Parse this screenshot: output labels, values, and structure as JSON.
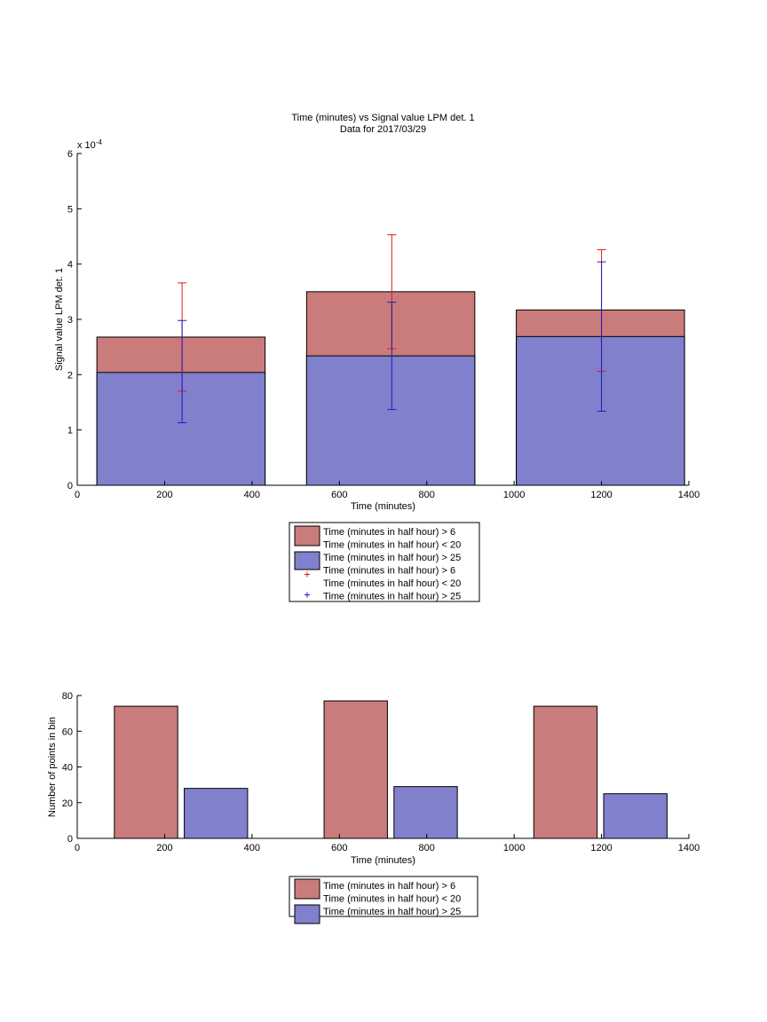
{
  "chart_data": [
    {
      "type": "bar",
      "title": "Time (minutes) vs Signal value LPM det. 1",
      "subtitle": "Data for 2017/03/29",
      "xlabel": "Time (minutes)",
      "ylabel": "Signal value LPM det. 1",
      "y_exponent_label": "x 10",
      "y_exponent_power": "-4",
      "xlim": [
        0,
        1400
      ],
      "ylim": [
        0,
        6
      ],
      "xticks": [
        "0",
        "200",
        "400",
        "600",
        "800",
        "1000",
        "1200",
        "1400"
      ],
      "yticks": [
        "0",
        "1",
        "2",
        "3",
        "4",
        "5",
        "6"
      ],
      "grid": false,
      "legend_position": "below",
      "bins": [
        {
          "x0": 45,
          "x1": 430,
          "center": 240
        },
        {
          "x0": 525,
          "x1": 910,
          "center": 720
        },
        {
          "x0": 1005,
          "x1": 1390,
          "center": 1200
        }
      ],
      "series": [
        {
          "legend": "Time (minutes in half hour) > 6\nTime (minutes in half hour) < 20",
          "color": "#c97c7b",
          "values": [
            2.68,
            3.5,
            3.17
          ],
          "error_bars": [
            {
              "low": 1.7,
              "high": 3.66
            },
            {
              "low": 2.47,
              "high": 4.53
            },
            {
              "low": 2.06,
              "high": 4.26
            }
          ],
          "error_color": "#e01a1a"
        },
        {
          "legend": "Time (minutes in half hour) > 25",
          "color": "#8080cc",
          "values": [
            2.04,
            2.34,
            2.69
          ],
          "error_bars": [
            {
              "low": 1.13,
              "high": 2.98
            },
            {
              "low": 1.37,
              "high": 3.31
            },
            {
              "low": 1.34,
              "high": 4.04
            }
          ],
          "error_color": "#1a1acc"
        }
      ],
      "legend_entries": [
        {
          "swatch": "bar",
          "color": "#c97c7b",
          "lines": [
            "Time (minutes in half hour) > 6",
            "Time (minutes in half hour) < 20"
          ]
        },
        {
          "swatch": "bar",
          "color": "#8080cc",
          "lines": [
            "Time (minutes in half hour) > 25"
          ]
        },
        {
          "swatch": "plus",
          "color": "#e01a1a",
          "lines": [
            "Time (minutes in half hour) > 6",
            "Time (minutes in half hour) < 20"
          ]
        },
        {
          "swatch": "plus",
          "color": "#1a1acc",
          "lines": [
            "Time (minutes in half hour) > 25"
          ]
        }
      ]
    },
    {
      "type": "bar",
      "xlabel": "Time (minutes)",
      "ylabel": "Number of points in bin",
      "xlim": [
        0,
        1400
      ],
      "ylim": [
        0,
        80
      ],
      "xticks": [
        "0",
        "200",
        "400",
        "600",
        "800",
        "1000",
        "1200",
        "1400"
      ],
      "yticks": [
        "0",
        "20",
        "40",
        "60",
        "80"
      ],
      "grid": false,
      "legend_position": "below",
      "series": [
        {
          "legend": "Time (minutes in half hour) > 6\nTime (minutes in half hour) < 20",
          "color": "#c97c7b",
          "bars": [
            {
              "x0": 85,
              "x1": 230,
              "value": 74
            },
            {
              "x0": 565,
              "x1": 710,
              "value": 77
            },
            {
              "x0": 1045,
              "x1": 1190,
              "value": 74
            }
          ]
        },
        {
          "legend": "Time (minutes in half hour) > 25",
          "color": "#8080cc",
          "bars": [
            {
              "x0": 245,
              "x1": 390,
              "value": 28
            },
            {
              "x0": 725,
              "x1": 870,
              "value": 29
            },
            {
              "x0": 1205,
              "x1": 1350,
              "value": 25
            }
          ]
        }
      ],
      "legend_entries": [
        {
          "swatch": "bar",
          "color": "#c97c7b",
          "lines": [
            "Time (minutes in half hour) > 6",
            "Time (minutes in half hour) < 20"
          ]
        },
        {
          "swatch": "bar",
          "color": "#8080cc",
          "lines": [
            "Time (minutes in half hour) > 25"
          ]
        }
      ]
    }
  ]
}
